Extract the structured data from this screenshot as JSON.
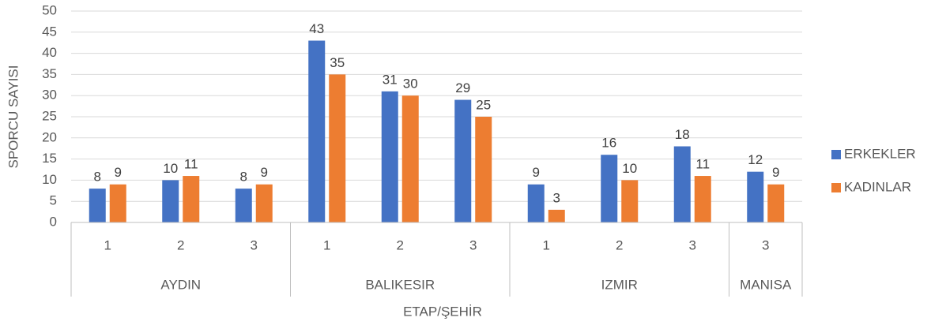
{
  "chart_data": {
    "type": "bar",
    "x_label": "ETAP/ŞEHİR",
    "y_label": "SPORCU SAYISI",
    "groups": [
      {
        "label": "AYDIN",
        "categories": [
          "1",
          "2",
          "3"
        ]
      },
      {
        "label": "BALIKESIR",
        "categories": [
          "1",
          "2",
          "3"
        ]
      },
      {
        "label": "IZMIR",
        "categories": [
          "1",
          "2",
          "3"
        ]
      },
      {
        "label": "MANISA",
        "categories": [
          "3"
        ]
      }
    ],
    "series": [
      {
        "name": "ERKEKLER",
        "color": "#4472c4",
        "values": [
          8,
          10,
          8,
          43,
          31,
          29,
          9,
          16,
          18,
          12
        ]
      },
      {
        "name": "KADINLAR",
        "color": "#ed7d31",
        "values": [
          9,
          11,
          9,
          35,
          30,
          25,
          3,
          10,
          11,
          9
        ]
      }
    ],
    "ylim": [
      0,
      50
    ],
    "yticks": [
      0,
      5,
      10,
      15,
      20,
      25,
      30,
      35,
      40,
      45,
      50
    ],
    "grid": true,
    "legend": "right",
    "data_labels": true
  }
}
